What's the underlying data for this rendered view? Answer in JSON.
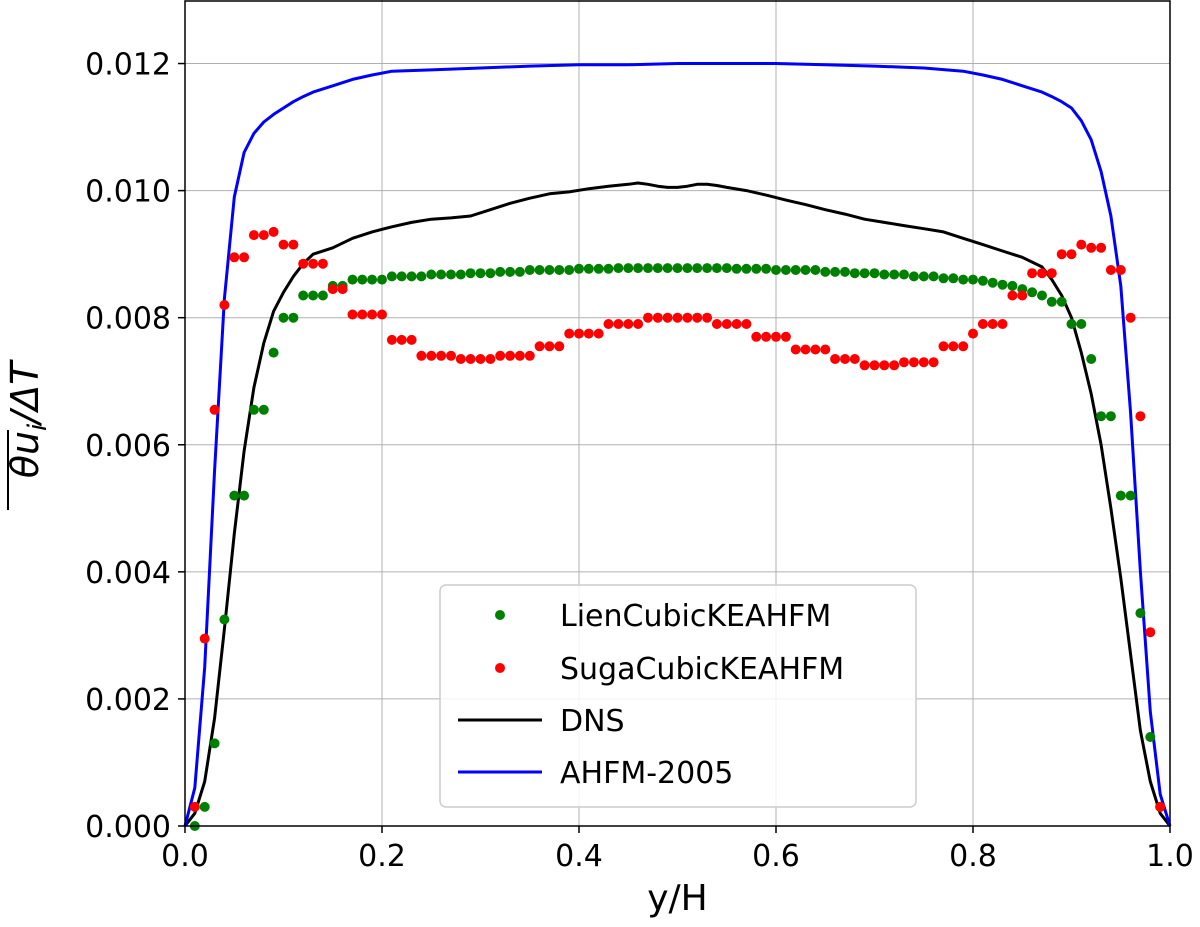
{
  "chart_data": {
    "type": "line",
    "xlabel": "y/H",
    "ylabel": "θu_i/ΔT",
    "ylabel_parts": {
      "theta": "θ",
      "u": "u",
      "sub": "i",
      "rest": "/ΔT"
    },
    "xlim": [
      0.0,
      1.0
    ],
    "ylim": [
      0.0,
      0.013
    ],
    "xticks": [
      "0.0",
      "0.2",
      "0.4",
      "0.6",
      "0.8",
      "1.0"
    ],
    "yticks": [
      "0.000",
      "0.002",
      "0.004",
      "0.006",
      "0.008",
      "0.010",
      "0.012"
    ],
    "grid": true,
    "legend_position": "lower-center",
    "series": [
      {
        "name": "LienCubicKEAHFM",
        "style": "markers",
        "color": "#008000",
        "x": [
          0.01,
          0.02,
          0.03,
          0.04,
          0.05,
          0.06,
          0.07,
          0.08,
          0.09,
          0.1,
          0.11,
          0.12,
          0.13,
          0.14,
          0.15,
          0.16,
          0.17,
          0.18,
          0.19,
          0.2,
          0.21,
          0.22,
          0.23,
          0.24,
          0.25,
          0.26,
          0.27,
          0.28,
          0.29,
          0.3,
          0.31,
          0.32,
          0.33,
          0.34,
          0.35,
          0.36,
          0.37,
          0.38,
          0.39,
          0.4,
          0.41,
          0.42,
          0.43,
          0.44,
          0.45,
          0.46,
          0.47,
          0.48,
          0.49,
          0.5,
          0.51,
          0.52,
          0.53,
          0.54,
          0.55,
          0.56,
          0.57,
          0.58,
          0.59,
          0.6,
          0.61,
          0.62,
          0.63,
          0.64,
          0.65,
          0.66,
          0.67,
          0.68,
          0.69,
          0.7,
          0.71,
          0.72,
          0.73,
          0.74,
          0.75,
          0.76,
          0.77,
          0.78,
          0.79,
          0.8,
          0.81,
          0.82,
          0.83,
          0.84,
          0.85,
          0.86,
          0.87,
          0.88,
          0.89,
          0.9,
          0.91,
          0.92,
          0.93,
          0.94,
          0.95,
          0.96,
          0.97,
          0.98,
          0.99
        ],
        "y": [
          0.0,
          0.0003,
          0.0013,
          0.00325,
          0.0052,
          0.0052,
          0.00655,
          0.00655,
          0.00745,
          0.008,
          0.008,
          0.00835,
          0.00835,
          0.00835,
          0.0085,
          0.0085,
          0.0086,
          0.0086,
          0.0086,
          0.0086,
          0.00865,
          0.00865,
          0.00865,
          0.00865,
          0.00868,
          0.00868,
          0.00868,
          0.00868,
          0.0087,
          0.0087,
          0.0087,
          0.00872,
          0.00872,
          0.00872,
          0.00875,
          0.00875,
          0.00875,
          0.00875,
          0.00875,
          0.00877,
          0.00877,
          0.00877,
          0.00877,
          0.00878,
          0.00878,
          0.00878,
          0.00878,
          0.00878,
          0.00878,
          0.00878,
          0.00878,
          0.00878,
          0.00878,
          0.00878,
          0.00878,
          0.00877,
          0.00877,
          0.00877,
          0.00877,
          0.00875,
          0.00875,
          0.00875,
          0.00875,
          0.00875,
          0.00872,
          0.00872,
          0.00872,
          0.0087,
          0.0087,
          0.0087,
          0.00868,
          0.00868,
          0.00868,
          0.00865,
          0.00865,
          0.00865,
          0.00862,
          0.00862,
          0.0086,
          0.0086,
          0.00858,
          0.00855,
          0.00852,
          0.0085,
          0.00845,
          0.0084,
          0.00835,
          0.00825,
          0.00825,
          0.0079,
          0.0079,
          0.00735,
          0.00645,
          0.00645,
          0.0052,
          0.0052,
          0.00335,
          0.0014,
          0.0003
        ]
      },
      {
        "name": "SugaCubicKEAHFM",
        "style": "markers",
        "color": "#ff0000",
        "x": [
          0.01,
          0.02,
          0.03,
          0.04,
          0.05,
          0.06,
          0.07,
          0.08,
          0.09,
          0.1,
          0.11,
          0.12,
          0.13,
          0.14,
          0.15,
          0.16,
          0.17,
          0.18,
          0.19,
          0.2,
          0.21,
          0.22,
          0.23,
          0.24,
          0.25,
          0.26,
          0.27,
          0.28,
          0.29,
          0.3,
          0.31,
          0.32,
          0.33,
          0.34,
          0.35,
          0.36,
          0.37,
          0.38,
          0.39,
          0.4,
          0.41,
          0.42,
          0.43,
          0.44,
          0.45,
          0.46,
          0.47,
          0.48,
          0.49,
          0.5,
          0.51,
          0.52,
          0.53,
          0.54,
          0.55,
          0.56,
          0.57,
          0.58,
          0.59,
          0.6,
          0.61,
          0.62,
          0.63,
          0.64,
          0.65,
          0.66,
          0.67,
          0.68,
          0.69,
          0.7,
          0.71,
          0.72,
          0.73,
          0.74,
          0.75,
          0.76,
          0.77,
          0.78,
          0.79,
          0.8,
          0.81,
          0.82,
          0.83,
          0.84,
          0.85,
          0.86,
          0.87,
          0.88,
          0.89,
          0.9,
          0.91,
          0.92,
          0.93,
          0.94,
          0.95,
          0.96,
          0.97,
          0.98,
          0.99
        ],
        "y": [
          0.0003,
          0.00295,
          0.00655,
          0.0082,
          0.00895,
          0.00895,
          0.0093,
          0.0093,
          0.00935,
          0.00915,
          0.00915,
          0.00885,
          0.00885,
          0.00885,
          0.00845,
          0.00845,
          0.00805,
          0.00805,
          0.00805,
          0.00805,
          0.00765,
          0.00765,
          0.00765,
          0.0074,
          0.0074,
          0.0074,
          0.0074,
          0.00735,
          0.00735,
          0.00735,
          0.00735,
          0.0074,
          0.0074,
          0.0074,
          0.0074,
          0.00755,
          0.00755,
          0.00755,
          0.00775,
          0.00775,
          0.00775,
          0.00775,
          0.0079,
          0.0079,
          0.0079,
          0.0079,
          0.008,
          0.008,
          0.008,
          0.008,
          0.008,
          0.008,
          0.008,
          0.0079,
          0.0079,
          0.0079,
          0.0079,
          0.0077,
          0.0077,
          0.0077,
          0.0077,
          0.0075,
          0.0075,
          0.0075,
          0.0075,
          0.00735,
          0.00735,
          0.00735,
          0.00725,
          0.00725,
          0.00725,
          0.00725,
          0.0073,
          0.0073,
          0.0073,
          0.0073,
          0.00755,
          0.00755,
          0.00755,
          0.00775,
          0.0079,
          0.0079,
          0.0079,
          0.00835,
          0.00835,
          0.0087,
          0.0087,
          0.0087,
          0.009,
          0.009,
          0.00915,
          0.0091,
          0.0091,
          0.00875,
          0.00875,
          0.008,
          0.00645,
          0.00305,
          0.0003
        ]
      },
      {
        "name": "DNS",
        "style": "line",
        "color": "#000000",
        "x": [
          0.0,
          0.01,
          0.02,
          0.03,
          0.04,
          0.05,
          0.06,
          0.07,
          0.08,
          0.09,
          0.1,
          0.11,
          0.12,
          0.13,
          0.15,
          0.17,
          0.19,
          0.21,
          0.23,
          0.25,
          0.27,
          0.29,
          0.31,
          0.33,
          0.35,
          0.37,
          0.39,
          0.41,
          0.43,
          0.45,
          0.46,
          0.47,
          0.48,
          0.49,
          0.5,
          0.51,
          0.52,
          0.53,
          0.54,
          0.55,
          0.57,
          0.59,
          0.61,
          0.63,
          0.65,
          0.67,
          0.69,
          0.71,
          0.73,
          0.75,
          0.77,
          0.79,
          0.81,
          0.83,
          0.85,
          0.87,
          0.88,
          0.89,
          0.9,
          0.91,
          0.92,
          0.93,
          0.94,
          0.95,
          0.96,
          0.97,
          0.98,
          0.99,
          1.0
        ],
        "y": [
          0.0,
          0.0002,
          0.0007,
          0.0017,
          0.0031,
          0.0046,
          0.0059,
          0.0069,
          0.0076,
          0.0081,
          0.0084,
          0.00865,
          0.00885,
          0.009,
          0.0091,
          0.00925,
          0.00935,
          0.00943,
          0.0095,
          0.00955,
          0.00957,
          0.0096,
          0.0097,
          0.0098,
          0.00988,
          0.00995,
          0.00998,
          0.01003,
          0.01007,
          0.0101,
          0.01012,
          0.0101,
          0.01007,
          0.01005,
          0.01005,
          0.01007,
          0.0101,
          0.0101,
          0.01008,
          0.01005,
          0.01,
          0.00993,
          0.00985,
          0.00978,
          0.0097,
          0.00963,
          0.00955,
          0.0095,
          0.00945,
          0.0094,
          0.00935,
          0.00925,
          0.00915,
          0.00905,
          0.00895,
          0.0088,
          0.0086,
          0.00835,
          0.008,
          0.00745,
          0.0068,
          0.006,
          0.005,
          0.0039,
          0.0027,
          0.0015,
          0.0007,
          0.0002,
          0.0
        ]
      },
      {
        "name": "AHFM-2005",
        "style": "line",
        "color": "#0000ff",
        "x": [
          0.0,
          0.01,
          0.02,
          0.03,
          0.04,
          0.05,
          0.06,
          0.07,
          0.08,
          0.09,
          0.1,
          0.11,
          0.12,
          0.13,
          0.15,
          0.17,
          0.19,
          0.21,
          0.25,
          0.3,
          0.35,
          0.4,
          0.45,
          0.5,
          0.55,
          0.6,
          0.65,
          0.7,
          0.75,
          0.79,
          0.81,
          0.83,
          0.85,
          0.87,
          0.88,
          0.89,
          0.9,
          0.91,
          0.92,
          0.93,
          0.94,
          0.95,
          0.96,
          0.97,
          0.98,
          0.99,
          1.0
        ],
        "y": [
          0.0,
          0.0006,
          0.0025,
          0.0056,
          0.0083,
          0.0099,
          0.0106,
          0.0109,
          0.01108,
          0.0112,
          0.0113,
          0.0114,
          0.01148,
          0.01155,
          0.01165,
          0.01175,
          0.01182,
          0.01188,
          0.0119,
          0.01193,
          0.01196,
          0.01198,
          0.01198,
          0.012,
          0.012,
          0.012,
          0.01198,
          0.01196,
          0.01193,
          0.01188,
          0.01182,
          0.01175,
          0.01165,
          0.01155,
          0.01148,
          0.0114,
          0.0113,
          0.0111,
          0.0108,
          0.0103,
          0.0096,
          0.0085,
          0.0065,
          0.004,
          0.0018,
          0.0005,
          0.0
        ]
      }
    ]
  }
}
